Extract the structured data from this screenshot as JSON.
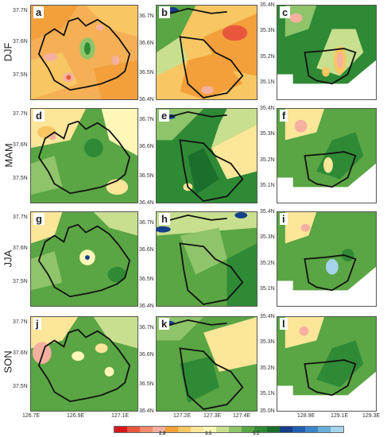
{
  "seasons": [
    "DJF",
    "MAM",
    "JJA",
    "SON"
  ],
  "panel_labels": [
    "a",
    "b",
    "c",
    "d",
    "e",
    "f",
    "g",
    "h",
    "i",
    "j",
    "k",
    "l"
  ],
  "col1": {
    "lat_ticks": [
      "37.7N",
      "37.6N",
      "37.5N"
    ],
    "lon_ticks": [
      "126.7E",
      "126.9E",
      "127.1E"
    ]
  },
  "col2": {
    "lat_ticks": [
      "36.7N",
      "36.6N",
      "36.5N",
      "36.4N"
    ],
    "lon_ticks": [
      "127.2E",
      "127.3E",
      "127.4E"
    ]
  },
  "col3": {
    "lat_ticks": [
      "35.4N",
      "35.3N",
      "35.2N",
      "35.1N",
      "35.0N"
    ],
    "lon_ticks": [
      "128.9E",
      "129.1E",
      "129.3E"
    ]
  },
  "colorbar": {
    "colors": [
      "#d7191c",
      "#e8573c",
      "#f08a6a",
      "#f6b0a0",
      "#f3a03c",
      "#f8c663",
      "#fbe69a",
      "#fff7b8",
      "#c8df8f",
      "#8fc46a",
      "#5aa544",
      "#2f8a35",
      "#1c6e2c",
      "#153f8a",
      "#2160b0",
      "#3b86c8",
      "#68aed8",
      "#a4d3ea"
    ],
    "labels": [
      "2.8",
      "3.5",
      "5.1"
    ]
  }
}
